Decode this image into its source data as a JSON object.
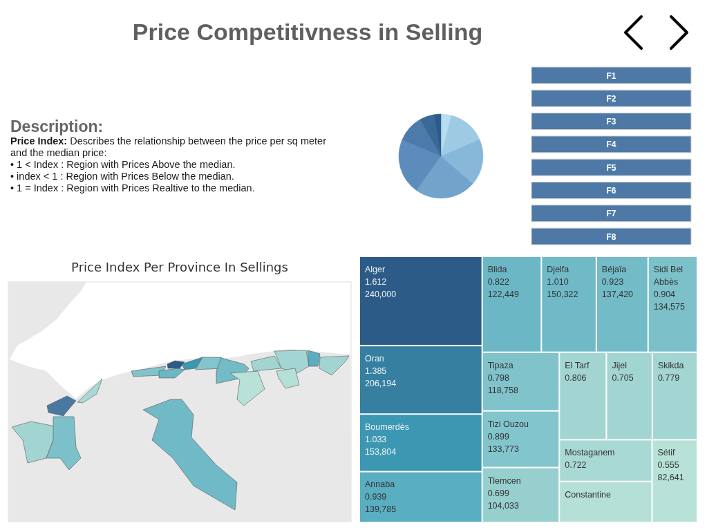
{
  "chart_data": [
    {
      "type": "other",
      "title": "Price Competitivness in Selling",
      "subtitle": "Description:",
      "annotations": [
        "Price Index:",
        "Describes the relationship between the price per sq meter and the median price:",
        "• 1 < Index : Region with Prices Above the median.",
        "• index < 1 : Region with Prices Below the median.",
        "• 1 = Index : Region with Prices Realtive to the median."
      ]
    },
    {
      "type": "pie",
      "categories": [
        null,
        null,
        null,
        null,
        null,
        null,
        null,
        null
      ],
      "values": [
        4.0,
        14.5,
        17.9,
        23.5,
        21.4,
        10.4,
        5.7,
        2.6
      ],
      "colors": [
        "#b8dcf0",
        "#9ecae4",
        "#87b8da",
        "#71a3cb",
        "#5b8cbb",
        "#4b7bab",
        "#3b6997",
        "#2c5a8a"
      ]
    },
    {
      "type": "other",
      "annotations": [
        "F1",
        "F2",
        "F3",
        "F4",
        "F5",
        "F6",
        "F7",
        "F8"
      ],
      "color": "#4e79a7"
    },
    {
      "type": "other",
      "title": "Price Index Per Province In Sellings"
    },
    {
      "type": "other",
      "categories": [
        "Alger",
        "Oran",
        "Boumerdès",
        "Annaba",
        "Blida",
        "Djelfa",
        "Béjaïa",
        "Sidi Bel Abbès",
        "Tipaza",
        "Tizi Ouzou",
        "Tlemcen",
        "El Tarf",
        "Jijel",
        "Skikda",
        "Mostaganem",
        "Constantine",
        "Sétif"
      ],
      "series": [
        {
          "values": [
            1.612,
            1.385,
            1.033,
            0.939,
            0.822,
            1.01,
            0.923,
            0.904,
            0.798,
            0.899,
            0.699,
            0.806,
            0.705,
            0.779,
            0.722,
            null,
            0.555
          ],
          "value_labels": [
            "1.612",
            "1.385",
            "1.033",
            "0.939",
            "0.822",
            "1.010",
            "0.923",
            "0.904",
            "0.798",
            "0.899",
            "0.699",
            "0.806",
            "0.705",
            "0.779",
            "0.722",
            null,
            "0.555"
          ],
          "colors": [
            "#2d5b87",
            "#367fa1",
            "#3c97b2",
            "#5aaec2",
            "#6cb7c5",
            "#70bac7",
            "#72bbc7",
            "#7cc1ca",
            "#80c3cb",
            "#82c5cc",
            "#97cfcf",
            "#a2d5d2",
            "#a2d5d2",
            "#a3d6d3",
            "#a9d9d4",
            "#b5e0d6",
            "#b8e2d8"
          ]
        },
        {
          "values": [
            240000,
            206194,
            153804,
            139785,
            122449,
            150322,
            137420,
            134575,
            118758,
            133773,
            104033,
            null,
            null,
            null,
            null,
            null,
            82641
          ],
          "value_labels": [
            "240,000",
            "206,194",
            "153,804",
            "139,785",
            "122,449",
            "150,322",
            "137,420",
            "134,575",
            "118,758",
            "133,773",
            "104,033",
            null,
            null,
            null,
            null,
            null,
            "82,641"
          ]
        }
      ]
    }
  ]
}
